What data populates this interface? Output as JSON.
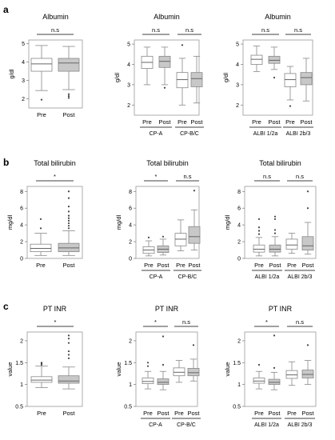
{
  "panel_labels": [
    "a",
    "b",
    "c"
  ],
  "chart_data": [
    {
      "type": "box",
      "panel": "a",
      "title": "Albumin",
      "ylabel": "g/dl",
      "ylim": [
        1.5,
        5.2
      ],
      "yticks": [
        2,
        3,
        4,
        5
      ],
      "yticklabels": [
        "2",
        "3",
        "4",
        "5"
      ],
      "categories": [
        "Pre",
        "Post"
      ],
      "groups": [],
      "boxes": [
        {
          "label": "Pre",
          "fill": "#ffffff",
          "whisker_low": 2.45,
          "q1": 3.5,
          "median": 3.9,
          "q3": 4.2,
          "whisker_high": 4.9,
          "outliers": [
            1.95
          ]
        },
        {
          "label": "Post",
          "fill": "#c8c8c8",
          "whisker_low": 2.5,
          "q1": 3.5,
          "median": 3.95,
          "q3": 4.2,
          "whisker_high": 4.85,
          "outliers": [
            2.25,
            2.15,
            2.05
          ]
        }
      ],
      "significance": [
        {
          "from": 0,
          "to": 1,
          "label": "n.s"
        }
      ]
    },
    {
      "type": "box",
      "panel": "a",
      "title": "Albumin",
      "ylabel": "g/dl",
      "ylim": [
        1.5,
        5.2
      ],
      "yticks": [
        2,
        3,
        4,
        5
      ],
      "yticklabels": [
        "2",
        "3",
        "4",
        "5"
      ],
      "categories": [
        "Pre",
        "Post",
        "Pre",
        "Post"
      ],
      "groups": [
        {
          "label": "CP-A",
          "from": 0,
          "to": 1
        },
        {
          "label": "CP-B/C",
          "from": 2,
          "to": 3
        }
      ],
      "boxes": [
        {
          "label": "Pre",
          "fill": "#ffffff",
          "whisker_low": 3.0,
          "q1": 3.8,
          "median": 4.1,
          "q3": 4.4,
          "whisker_high": 4.85,
          "outliers": []
        },
        {
          "label": "Post",
          "fill": "#c8c8c8",
          "whisker_low": 3.0,
          "q1": 3.85,
          "median": 4.15,
          "q3": 4.4,
          "whisker_high": 4.85,
          "outliers": [
            2.85
          ]
        },
        {
          "label": "Pre",
          "fill": "#ffffff",
          "whisker_low": 2.0,
          "q1": 2.85,
          "median": 3.25,
          "q3": 3.6,
          "whisker_high": 4.3,
          "outliers": [
            4.95
          ]
        },
        {
          "label": "Post",
          "fill": "#c8c8c8",
          "whisker_low": 2.1,
          "q1": 2.9,
          "median": 3.3,
          "q3": 3.6,
          "whisker_high": 4.4,
          "outliers": []
        }
      ],
      "significance": [
        {
          "from": 0,
          "to": 1,
          "label": "n.s"
        },
        {
          "from": 2,
          "to": 3,
          "label": "n.s"
        }
      ]
    },
    {
      "type": "box",
      "panel": "a",
      "title": "Albumin",
      "ylabel": "g/dl",
      "ylim": [
        1.5,
        5.2
      ],
      "yticks": [
        2,
        3,
        4,
        5
      ],
      "yticklabels": [
        "2",
        "3",
        "4",
        "5"
      ],
      "categories": [
        "Pre",
        "Post",
        "Pre",
        "Post"
      ],
      "groups": [
        {
          "label": "ALBI 1/2a",
          "from": 0,
          "to": 1
        },
        {
          "label": "ALBI 2b/3",
          "from": 2,
          "to": 3
        }
      ],
      "boxes": [
        {
          "label": "Pre",
          "fill": "#ffffff",
          "whisker_low": 3.65,
          "q1": 4.0,
          "median": 4.25,
          "q3": 4.45,
          "whisker_high": 4.9,
          "outliers": []
        },
        {
          "label": "Post",
          "fill": "#c8c8c8",
          "whisker_low": 3.75,
          "q1": 4.05,
          "median": 4.2,
          "q3": 4.4,
          "whisker_high": 4.85,
          "outliers": [
            3.35
          ]
        },
        {
          "label": "Pre",
          "fill": "#ffffff",
          "whisker_low": 2.25,
          "q1": 2.9,
          "median": 3.25,
          "q3": 3.55,
          "whisker_high": 3.9,
          "outliers": [
            1.95
          ]
        },
        {
          "label": "Post",
          "fill": "#c8c8c8",
          "whisker_low": 2.2,
          "q1": 3.0,
          "median": 3.35,
          "q3": 3.6,
          "whisker_high": 4.3,
          "outliers": []
        }
      ],
      "significance": [
        {
          "from": 0,
          "to": 1,
          "label": "n.s"
        },
        {
          "from": 2,
          "to": 3,
          "label": "n.s"
        }
      ]
    },
    {
      "type": "box",
      "panel": "b",
      "title": "Total bilirubin",
      "ylabel": "mg/dl",
      "ylim": [
        0,
        8.6
      ],
      "yticks": [
        0,
        2,
        4,
        6,
        8
      ],
      "yticklabels": [
        "0",
        "2",
        "4",
        "6",
        "8"
      ],
      "categories": [
        "Pre",
        "Post"
      ],
      "groups": [],
      "boxes": [
        {
          "label": "Pre",
          "fill": "#ffffff",
          "whisker_low": 0.35,
          "q1": 0.8,
          "median": 1.2,
          "q3": 1.7,
          "whisker_high": 3.0,
          "outliers": [
            3.6,
            4.7
          ]
        },
        {
          "label": "Post",
          "fill": "#c8c8c8",
          "whisker_low": 0.35,
          "q1": 0.8,
          "median": 1.25,
          "q3": 1.8,
          "whisker_high": 3.3,
          "outliers": [
            3.6,
            3.9,
            4.2,
            4.5,
            4.8,
            5.1,
            5.6,
            6.2,
            7.2,
            8.0
          ]
        }
      ],
      "significance": [
        {
          "from": 0,
          "to": 1,
          "label": "*"
        }
      ]
    },
    {
      "type": "box",
      "panel": "b",
      "title": "Total bilirubin",
      "ylabel": "mg/dl",
      "ylim": [
        0,
        8.6
      ],
      "yticks": [
        0,
        2,
        4,
        6,
        8
      ],
      "yticklabels": [
        "0",
        "2",
        "4",
        "6",
        "8"
      ],
      "categories": [
        "Pre",
        "Post",
        "Pre",
        "Post"
      ],
      "groups": [
        {
          "label": "CP-A",
          "from": 0,
          "to": 1
        },
        {
          "label": "CP-B/C",
          "from": 2,
          "to": 3
        }
      ],
      "boxes": [
        {
          "label": "Pre",
          "fill": "#ffffff",
          "whisker_low": 0.3,
          "q1": 0.6,
          "median": 1.0,
          "q3": 1.4,
          "whisker_high": 2.1,
          "outliers": [
            2.5
          ]
        },
        {
          "label": "Post",
          "fill": "#c8c8c8",
          "whisker_low": 0.4,
          "q1": 0.7,
          "median": 1.1,
          "q3": 1.5,
          "whisker_high": 2.3,
          "outliers": [
            2.6
          ]
        },
        {
          "label": "Pre",
          "fill": "#ffffff",
          "whisker_low": 0.9,
          "q1": 1.5,
          "median": 2.3,
          "q3": 3.0,
          "whisker_high": 4.6,
          "outliers": []
        },
        {
          "label": "Post",
          "fill": "#c8c8c8",
          "whisker_low": 1.0,
          "q1": 1.8,
          "median": 2.6,
          "q3": 3.8,
          "whisker_high": 5.8,
          "outliers": [
            8.1
          ]
        }
      ],
      "significance": [
        {
          "from": 0,
          "to": 1,
          "label": "*"
        },
        {
          "from": 2,
          "to": 3,
          "label": "n.s"
        }
      ]
    },
    {
      "type": "box",
      "panel": "b",
      "title": "Total bilirubin",
      "ylabel": "mg/dl",
      "ylim": [
        0,
        8.6
      ],
      "yticks": [
        0,
        2,
        4,
        6,
        8
      ],
      "yticklabels": [
        "0",
        "2",
        "4",
        "6",
        "8"
      ],
      "categories": [
        "Pre",
        "Post",
        "Pre",
        "Post"
      ],
      "groups": [
        {
          "label": "ALBI 1/2a",
          "from": 0,
          "to": 1
        },
        {
          "label": "ALBI 2b/3",
          "from": 2,
          "to": 3
        }
      ],
      "boxes": [
        {
          "label": "Pre",
          "fill": "#ffffff",
          "whisker_low": 0.3,
          "q1": 0.75,
          "median": 1.1,
          "q3": 1.6,
          "whisker_high": 2.5,
          "outliers": [
            2.9,
            3.3,
            3.7,
            4.7
          ]
        },
        {
          "label": "Post",
          "fill": "#c8c8c8",
          "whisker_low": 0.3,
          "q1": 0.75,
          "median": 1.1,
          "q3": 1.6,
          "whisker_high": 2.6,
          "outliers": [
            3.0,
            3.4,
            4.7,
            5.0
          ]
        },
        {
          "label": "Pre",
          "fill": "#ffffff",
          "whisker_low": 0.6,
          "q1": 1.1,
          "median": 1.6,
          "q3": 2.3,
          "whisker_high": 3.0,
          "outliers": []
        },
        {
          "label": "Post",
          "fill": "#c8c8c8",
          "whisker_low": 0.5,
          "q1": 1.0,
          "median": 1.5,
          "q3": 2.6,
          "whisker_high": 4.3,
          "outliers": [
            6.0,
            8.0
          ]
        }
      ],
      "significance": [
        {
          "from": 0,
          "to": 1,
          "label": "n.s"
        },
        {
          "from": 2,
          "to": 3,
          "label": "n.s"
        }
      ]
    },
    {
      "type": "box",
      "panel": "c",
      "title": "PT INR",
      "ylabel": "value",
      "ylim": [
        0.5,
        2.2
      ],
      "yticks": [
        0.5,
        1,
        1.5,
        2
      ],
      "yticklabels": [
        "0.5",
        "1",
        "1.5",
        "2"
      ],
      "categories": [
        "Pre",
        "Post"
      ],
      "groups": [],
      "boxes": [
        {
          "label": "Pre",
          "fill": "#ffffff",
          "whisker_low": 0.93,
          "q1": 1.05,
          "median": 1.1,
          "q3": 1.18,
          "whisker_high": 1.42,
          "outliers": [
            1.45,
            1.48,
            1.5
          ]
        },
        {
          "label": "Post",
          "fill": "#c8c8c8",
          "whisker_low": 0.9,
          "q1": 1.03,
          "median": 1.08,
          "q3": 1.2,
          "whisker_high": 1.4,
          "outliers": [
            1.6,
            1.68,
            1.76,
            1.95,
            2.05,
            2.12
          ]
        }
      ],
      "significance": [
        {
          "from": 0,
          "to": 1,
          "label": "*"
        }
      ]
    },
    {
      "type": "box",
      "panel": "c",
      "title": "PT INR",
      "ylabel": "value",
      "ylim": [
        0.5,
        2.2
      ],
      "yticks": [
        0.5,
        1,
        1.5,
        2
      ],
      "yticklabels": [
        "0.5",
        "1",
        "1.5",
        "2"
      ],
      "categories": [
        "Pre",
        "Post",
        "Pre",
        "Post"
      ],
      "groups": [
        {
          "label": "CP-A",
          "from": 0,
          "to": 1
        },
        {
          "label": "CP-B/C",
          "from": 2,
          "to": 3
        }
      ],
      "boxes": [
        {
          "label": "Pre",
          "fill": "#ffffff",
          "whisker_low": 0.9,
          "q1": 1.02,
          "median": 1.07,
          "q3": 1.15,
          "whisker_high": 1.3,
          "outliers": [
            1.42,
            1.5
          ]
        },
        {
          "label": "Post",
          "fill": "#c8c8c8",
          "whisker_low": 0.88,
          "q1": 1.0,
          "median": 1.05,
          "q3": 1.13,
          "whisker_high": 1.3,
          "outliers": [
            1.45,
            2.1
          ]
        },
        {
          "label": "Pre",
          "fill": "#ffffff",
          "whisker_low": 1.05,
          "q1": 1.2,
          "median": 1.28,
          "q3": 1.38,
          "whisker_high": 1.55,
          "outliers": []
        },
        {
          "label": "Post",
          "fill": "#c8c8c8",
          "whisker_low": 1.08,
          "q1": 1.2,
          "median": 1.27,
          "q3": 1.37,
          "whisker_high": 1.58,
          "outliers": [
            1.9
          ]
        }
      ],
      "significance": [
        {
          "from": 0,
          "to": 1,
          "label": "*"
        },
        {
          "from": 2,
          "to": 3,
          "label": "n.s"
        }
      ]
    },
    {
      "type": "box",
      "panel": "c",
      "title": "PT INR",
      "ylabel": "value",
      "ylim": [
        0.5,
        2.2
      ],
      "yticks": [
        0.5,
        1,
        1.5,
        2
      ],
      "yticklabels": [
        "0.5",
        "1",
        "1.5",
        "2"
      ],
      "categories": [
        "Pre",
        "Post",
        "Pre",
        "Post"
      ],
      "groups": [
        {
          "label": "ALBI 1/2a",
          "from": 0,
          "to": 1
        },
        {
          "label": "ALBI 2b/3",
          "from": 2,
          "to": 3
        }
      ],
      "boxes": [
        {
          "label": "Pre",
          "fill": "#ffffff",
          "whisker_low": 0.9,
          "q1": 1.03,
          "median": 1.08,
          "q3": 1.15,
          "whisker_high": 1.3,
          "outliers": [
            1.45
          ]
        },
        {
          "label": "Post",
          "fill": "#c8c8c8",
          "whisker_low": 0.88,
          "q1": 1.0,
          "median": 1.05,
          "q3": 1.12,
          "whisker_high": 1.28,
          "outliers": [
            1.38,
            2.12
          ]
        },
        {
          "label": "Pre",
          "fill": "#ffffff",
          "whisker_low": 0.98,
          "q1": 1.14,
          "median": 1.22,
          "q3": 1.32,
          "whisker_high": 1.52,
          "outliers": []
        },
        {
          "label": "Post",
          "fill": "#c8c8c8",
          "whisker_low": 1.0,
          "q1": 1.15,
          "median": 1.23,
          "q3": 1.33,
          "whisker_high": 1.55,
          "outliers": [
            1.9
          ]
        }
      ],
      "significance": [
        {
          "from": 0,
          "to": 1,
          "label": "*"
        },
        {
          "from": 2,
          "to": 3,
          "label": "n.s"
        }
      ]
    }
  ]
}
